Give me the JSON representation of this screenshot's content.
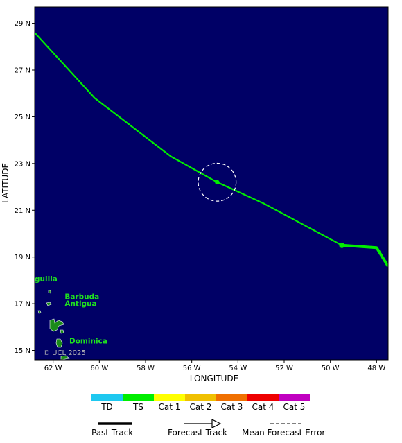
{
  "map": {
    "background": "#000066",
    "y_axis_title": "LATITUDE",
    "x_axis_title": "LONGITUDE",
    "lat_range": [
      14.6,
      29.7
    ],
    "lon_range": [
      62.8,
      47.5
    ],
    "lat_ticks": [
      {
        "value": 29,
        "label": "29 N"
      },
      {
        "value": 27,
        "label": "27 N"
      },
      {
        "value": 25,
        "label": "25 N"
      },
      {
        "value": 23,
        "label": "23 N"
      },
      {
        "value": 21,
        "label": "21 N"
      },
      {
        "value": 19,
        "label": "19 N"
      },
      {
        "value": 17,
        "label": "17 N"
      },
      {
        "value": 15,
        "label": "15 N"
      }
    ],
    "lon_ticks": [
      {
        "value": 62,
        "label": "62 W"
      },
      {
        "value": 60,
        "label": "60 W"
      },
      {
        "value": 58,
        "label": "58 W"
      },
      {
        "value": 56,
        "label": "56 W"
      },
      {
        "value": 54,
        "label": "54 W"
      },
      {
        "value": 52,
        "label": "52 W"
      },
      {
        "value": 50,
        "label": "50 W"
      },
      {
        "value": 48,
        "label": "48 W"
      }
    ],
    "place_labels": [
      {
        "text": "guilla",
        "lon": 62.8,
        "lat": 17.95
      },
      {
        "text": "Barbuda",
        "lon": 61.5,
        "lat": 17.2
      },
      {
        "text": "Antigua",
        "lon": 61.5,
        "lat": 16.9
      },
      {
        "text": "Dominica",
        "lon": 61.3,
        "lat": 15.3
      }
    ],
    "watermark": "© UCL 2025"
  },
  "chart_data": {
    "type": "map-track",
    "past_track": {
      "color": "#00ee00",
      "points": [
        {
          "lon": 47.5,
          "lat": 18.6
        },
        {
          "lon": 48.0,
          "lat": 19.4
        },
        {
          "lon": 49.5,
          "lat": 19.5
        }
      ]
    },
    "forecast_track": {
      "color": "#00ee00",
      "points": [
        {
          "lon": 49.5,
          "lat": 19.5
        },
        {
          "lon": 52.9,
          "lat": 21.3
        },
        {
          "lon": 54.9,
          "lat": 22.2
        },
        {
          "lon": 56.9,
          "lat": 23.3
        },
        {
          "lon": 60.2,
          "lat": 25.8
        },
        {
          "lon": 62.8,
          "lat": 28.6
        }
      ]
    },
    "positions": [
      {
        "lon": 49.5,
        "lat": 19.5
      },
      {
        "lon": 54.9,
        "lat": 22.2
      }
    ],
    "error_circle": {
      "lon": 54.9,
      "lat": 22.2,
      "radius_deg": 0.82
    }
  },
  "legend": {
    "categories": [
      {
        "label": "TD",
        "color": "#1ec8f0"
      },
      {
        "label": "TS",
        "color": "#00ee00"
      },
      {
        "label": "Cat 1",
        "color": "#ffff00"
      },
      {
        "label": "Cat 2",
        "color": "#f0c000"
      },
      {
        "label": "Cat 3",
        "color": "#f07000"
      },
      {
        "label": "Cat 4",
        "color": "#ee0000"
      },
      {
        "label": "Cat 5",
        "color": "#c000c0"
      }
    ],
    "past_track_label": "Past Track",
    "forecast_track_label": "Forecast Track",
    "error_label": "Mean Forecast Error"
  }
}
